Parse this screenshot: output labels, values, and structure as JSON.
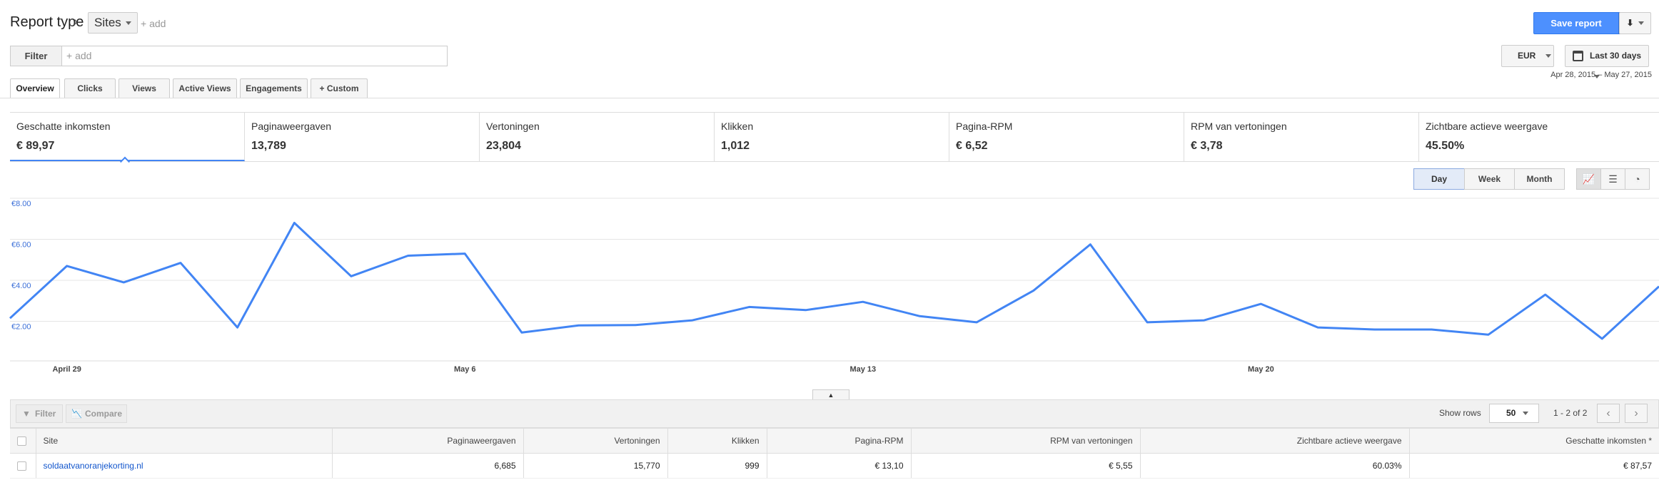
{
  "header": {
    "report_type_label": "Report type",
    "dimension_value": "Sites",
    "add_label": "+ add",
    "save_report_label": "Save report"
  },
  "filter_bar": {
    "filter_label": "Filter",
    "filter_placeholder": "+ add",
    "currency": "EUR",
    "date_preset": "Last 30 days",
    "date_range": "Apr 28, 2015 – May 27, 2015"
  },
  "tabs": [
    "Overview",
    "Clicks",
    "Views",
    "Active Views",
    "Engagements",
    "+ Custom"
  ],
  "metrics": [
    {
      "label": "Geschatte inkomsten",
      "value": "€ 89,97"
    },
    {
      "label": "Paginaweergaven",
      "value": "13,789"
    },
    {
      "label": "Vertoningen",
      "value": "23,804"
    },
    {
      "label": "Klikken",
      "value": "1,012"
    },
    {
      "label": "Pagina-RPM",
      "value": "€ 6,52"
    },
    {
      "label": "RPM van vertoningen",
      "value": "€ 3,78"
    },
    {
      "label": "Zichtbare actieve weergave",
      "value": "45.50%"
    }
  ],
  "period_buttons": [
    "Day",
    "Week",
    "Month"
  ],
  "chart_type_icons": [
    "line-chart-icon",
    "bar-chart-icon",
    "pie-chart-icon"
  ],
  "chart_data": {
    "type": "line",
    "series": [
      {
        "values": [
          2.15,
          4.7,
          3.9,
          4.85,
          1.7,
          6.8,
          4.2,
          5.2,
          5.3,
          1.45,
          1.8,
          1.82,
          2.05,
          2.7,
          2.55,
          2.95,
          2.25,
          1.95,
          3.5,
          5.75,
          1.95,
          2.05,
          2.85,
          1.7,
          1.6,
          1.6,
          1.35,
          3.3,
          1.15,
          3.7
        ]
      }
    ],
    "x": [
      "Apr 28",
      "Apr 29",
      "Apr 30",
      "May 1",
      "May 2",
      "May 3",
      "May 4",
      "May 5",
      "May 6",
      "May 7",
      "May 8",
      "May 9",
      "May 10",
      "May 11",
      "May 12",
      "May 13",
      "May 14",
      "May 15",
      "May 16",
      "May 17",
      "May 18",
      "May 19",
      "May 20",
      "May 21",
      "May 22",
      "May 23",
      "May 24",
      "May 25",
      "May 26",
      "May 27"
    ],
    "yticks": [
      "€8.00",
      "€6.00",
      "€4.00",
      "€2.00"
    ],
    "ytick_values": [
      8,
      6,
      4,
      2
    ],
    "xticks": [
      "April 29",
      "May 6",
      "May 13",
      "May 20"
    ],
    "xtick_values": [
      "Apr 29",
      "May 6",
      "May 13",
      "May 20"
    ],
    "ylim": [
      0,
      8
    ],
    "grid": true,
    "color": "#4285f4"
  },
  "table_toolbar": {
    "filter_label": "Filter",
    "compare_label": "Compare",
    "show_rows_label": "Show rows",
    "rows_value": "50",
    "pager_text": "1 - 2 of 2"
  },
  "table": {
    "headers": [
      "Site",
      "Paginaweergaven",
      "Vertoningen",
      "Klikken",
      "Pagina-RPM",
      "RPM van vertoningen",
      "Zichtbare actieve weergave",
      "Geschatte inkomsten *"
    ],
    "rows": [
      [
        "soldaatvanoranjekorting.nl",
        "6,685",
        "15,770",
        "999",
        "€ 13,10",
        "€ 5,55",
        "60.03%",
        "€ 87,57"
      ]
    ]
  }
}
